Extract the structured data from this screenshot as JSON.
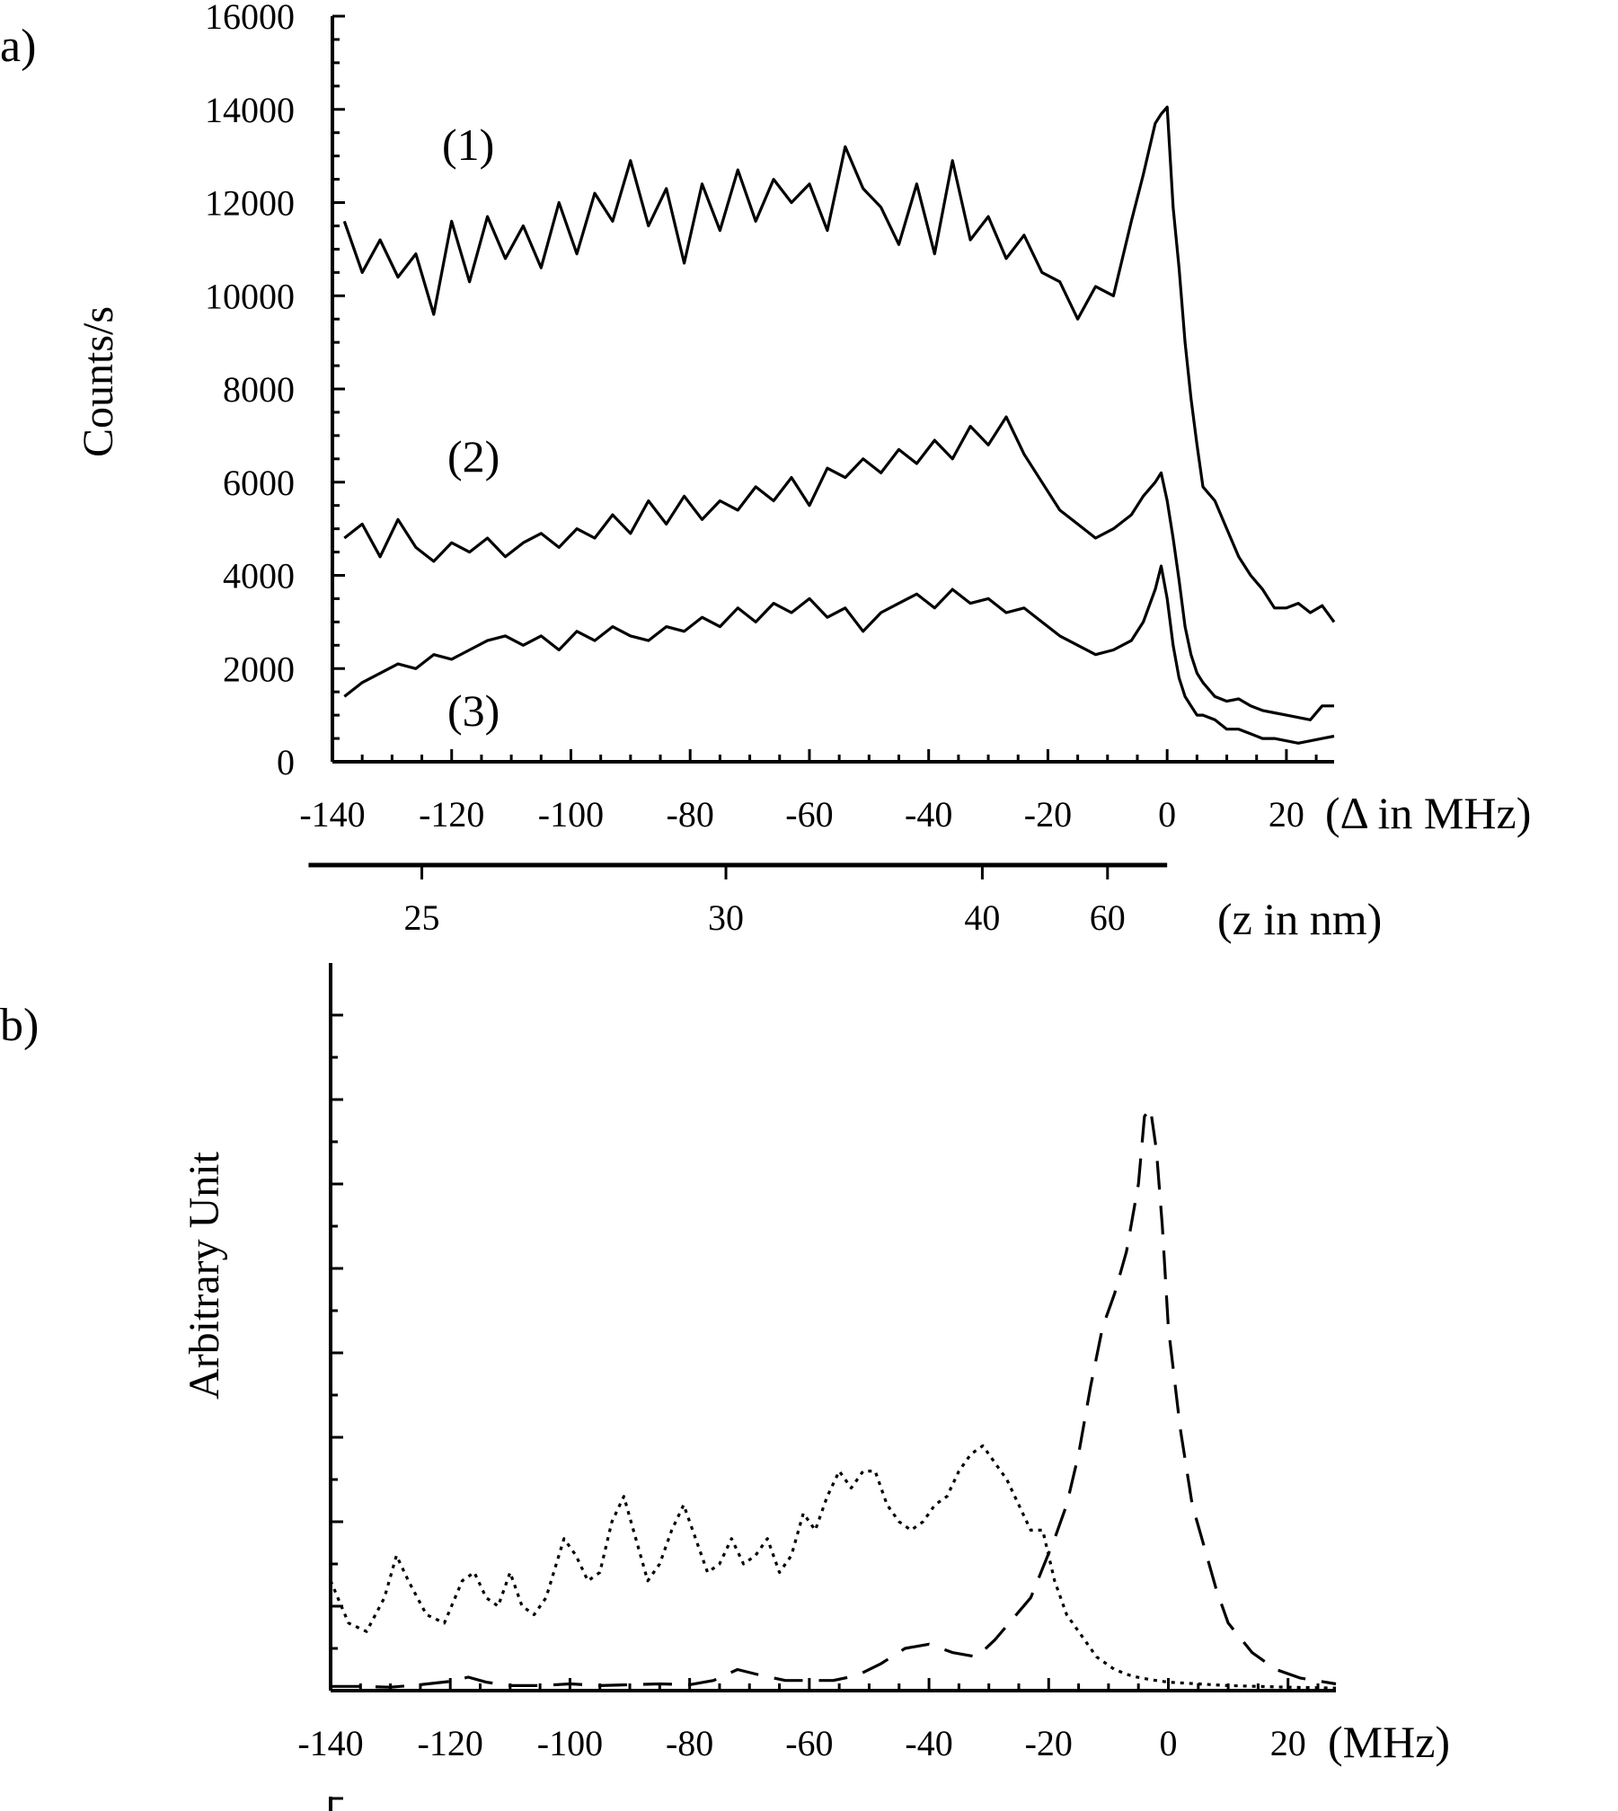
{
  "chart_data": [
    {
      "panel": "a)",
      "type": "line",
      "ylabel": "Counts/s",
      "xunit": "(Δ in MHz)",
      "xlim": [
        -140,
        28
      ],
      "ylim": [
        0,
        16000
      ],
      "xticks": [
        "-140",
        "-120",
        "-100",
        "-80",
        "-60",
        "-40",
        "-20",
        "0",
        "20"
      ],
      "yticks": [
        "0",
        "2000",
        "4000",
        "6000",
        "8000",
        "10000",
        "12000",
        "14000",
        "16000"
      ],
      "secondary_axis": {
        "unit": "(z in nm)",
        "ticks": [
          {
            "label": "25",
            "delta": -125
          },
          {
            "label": "30",
            "delta": -74
          },
          {
            "label": "40",
            "delta": -31
          },
          {
            "label": "60",
            "delta": -10
          }
        ],
        "range_delta": [
          -144,
          0
        ]
      },
      "grid": false,
      "legend": "none",
      "series": [
        {
          "name": "(1)",
          "x": [
            -138,
            -135,
            -132,
            -129,
            -126,
            -123,
            -120,
            -117,
            -114,
            -111,
            -108,
            -105,
            -102,
            -99,
            -96,
            -93,
            -90,
            -87,
            -84,
            -81,
            -78,
            -75,
            -72,
            -69,
            -66,
            -63,
            -60,
            -57,
            -54,
            -51,
            -48,
            -45,
            -42,
            -39,
            -36,
            -33,
            -30,
            -27,
            -24,
            -21,
            -18,
            -15,
            -12,
            -9,
            -6,
            -4,
            -2,
            -1,
            0,
            1,
            2,
            3,
            4,
            5,
            6,
            8,
            10,
            12,
            14,
            16,
            18,
            20,
            22,
            24,
            26,
            28
          ],
          "y": [
            11600,
            10500,
            11200,
            10400,
            10900,
            9600,
            11600,
            10300,
            11700,
            10800,
            11500,
            10600,
            12000,
            10900,
            12200,
            11600,
            12900,
            11500,
            12300,
            10700,
            12400,
            11400,
            12700,
            11600,
            12500,
            12000,
            12400,
            11400,
            13200,
            12300,
            11900,
            11100,
            12400,
            10900,
            12900,
            11200,
            11700,
            10800,
            11300,
            10500,
            10300,
            9500,
            10200,
            10000,
            11600,
            12600,
            13700,
            13900,
            14050,
            11900,
            10600,
            9000,
            7800,
            6800,
            5900,
            5600,
            5000,
            4400,
            4000,
            3700,
            3300,
            3300,
            3400,
            3200,
            3350,
            3000
          ]
        },
        {
          "name": "(2)",
          "x": [
            -138,
            -135,
            -132,
            -129,
            -126,
            -123,
            -120,
            -117,
            -114,
            -111,
            -108,
            -105,
            -102,
            -99,
            -96,
            -93,
            -90,
            -87,
            -84,
            -81,
            -78,
            -75,
            -72,
            -69,
            -66,
            -63,
            -60,
            -57,
            -54,
            -51,
            -48,
            -45,
            -42,
            -39,
            -36,
            -33,
            -30,
            -27,
            -24,
            -21,
            -18,
            -15,
            -12,
            -9,
            -6,
            -4,
            -2,
            -1,
            0,
            1,
            2,
            3,
            4,
            5,
            6,
            8,
            10,
            12,
            14,
            16,
            18,
            20,
            22,
            24,
            26,
            28
          ],
          "y": [
            4800,
            5100,
            4400,
            5200,
            4600,
            4300,
            4700,
            4500,
            4800,
            4400,
            4700,
            4900,
            4600,
            5000,
            4800,
            5300,
            4900,
            5600,
            5100,
            5700,
            5200,
            5600,
            5400,
            5900,
            5600,
            6100,
            5500,
            6300,
            6100,
            6500,
            6200,
            6700,
            6400,
            6900,
            6500,
            7200,
            6800,
            7400,
            6600,
            6000,
            5400,
            5100,
            4800,
            5000,
            5300,
            5700,
            6000,
            6200,
            5600,
            4800,
            3900,
            2900,
            2300,
            1900,
            1700,
            1400,
            1300,
            1350,
            1200,
            1100,
            1050,
            1000,
            950,
            900,
            1200,
            1200
          ]
        },
        {
          "name": "(3)",
          "x": [
            -138,
            -135,
            -132,
            -129,
            -126,
            -123,
            -120,
            -117,
            -114,
            -111,
            -108,
            -105,
            -102,
            -99,
            -96,
            -93,
            -90,
            -87,
            -84,
            -81,
            -78,
            -75,
            -72,
            -69,
            -66,
            -63,
            -60,
            -57,
            -54,
            -51,
            -48,
            -45,
            -42,
            -39,
            -36,
            -33,
            -30,
            -27,
            -24,
            -21,
            -18,
            -15,
            -12,
            -9,
            -6,
            -4,
            -2,
            -1,
            0,
            1,
            2,
            3,
            4,
            5,
            6,
            8,
            10,
            12,
            14,
            16,
            18,
            20,
            22,
            24,
            26,
            28
          ],
          "y": [
            1400,
            1700,
            1900,
            2100,
            2000,
            2300,
            2200,
            2400,
            2600,
            2700,
            2500,
            2700,
            2400,
            2800,
            2600,
            2900,
            2700,
            2600,
            2900,
            2800,
            3100,
            2900,
            3300,
            3000,
            3400,
            3200,
            3500,
            3100,
            3300,
            2800,
            3200,
            3400,
            3600,
            3300,
            3700,
            3400,
            3500,
            3200,
            3300,
            3000,
            2700,
            2500,
            2300,
            2400,
            2600,
            3000,
            3700,
            4200,
            3500,
            2500,
            1800,
            1400,
            1200,
            1000,
            1000,
            900,
            700,
            700,
            600,
            500,
            500,
            450,
            400,
            450,
            500,
            550
          ]
        }
      ]
    },
    {
      "panel": "b)",
      "type": "line",
      "ylabel": "Arbitrary Unit",
      "xunit": "(MHz)",
      "xlim": [
        -140,
        28
      ],
      "ylim": [
        0,
        8
      ],
      "xticks": [
        "-140",
        "-120",
        "-100",
        "-80",
        "-60",
        "-40",
        "-20",
        "0",
        "20"
      ],
      "yticks_labeled": false,
      "grid": false,
      "legend": "none",
      "series": [
        {
          "style": "dotted",
          "x": [
            -140,
            -137,
            -134,
            -131,
            -129,
            -127,
            -124,
            -121,
            -118,
            -116,
            -114,
            -112,
            -110,
            -108,
            -106,
            -104,
            -101,
            -99,
            -97,
            -95,
            -93,
            -91,
            -89,
            -87,
            -85,
            -83,
            -81,
            -79,
            -77,
            -75,
            -73,
            -71,
            -69,
            -67,
            -65,
            -63,
            -61,
            -59,
            -57,
            -55,
            -53,
            -51,
            -49,
            -47,
            -45,
            -43,
            -41,
            -39,
            -37,
            -35,
            -33,
            -31,
            -29,
            -27,
            -25,
            -23,
            -21,
            -19,
            -17,
            -15,
            -12,
            -9,
            -6,
            -3,
            0,
            5,
            10,
            15,
            20,
            28
          ],
          "y": [
            1.3,
            0.8,
            0.7,
            1.1,
            1.6,
            1.3,
            0.9,
            0.8,
            1.3,
            1.4,
            1.1,
            1.0,
            1.4,
            1.0,
            0.9,
            1.1,
            1.8,
            1.6,
            1.3,
            1.4,
            2.0,
            2.3,
            1.8,
            1.3,
            1.5,
            1.9,
            2.2,
            1.8,
            1.4,
            1.5,
            1.8,
            1.5,
            1.6,
            1.8,
            1.4,
            1.6,
            2.1,
            1.9,
            2.3,
            2.6,
            2.4,
            2.6,
            2.6,
            2.2,
            2.0,
            1.9,
            2.0,
            2.2,
            2.3,
            2.6,
            2.8,
            2.9,
            2.7,
            2.5,
            2.2,
            1.9,
            1.9,
            1.3,
            0.9,
            0.7,
            0.4,
            0.25,
            0.17,
            0.13,
            0.1,
            0.08,
            0.06,
            0.05,
            0.04,
            0.03
          ]
        },
        {
          "style": "dashed",
          "x": [
            -140,
            -135,
            -130,
            -125,
            -120,
            -117,
            -114,
            -110,
            -105,
            -100,
            -95,
            -90,
            -85,
            -80,
            -76,
            -72,
            -68,
            -64,
            -60,
            -56,
            -52,
            -48,
            -44,
            -40,
            -36,
            -32,
            -29,
            -26,
            -23,
            -21,
            -19,
            -17,
            -15,
            -13,
            -11,
            -9,
            -7,
            -5,
            -4,
            -3,
            -2,
            -1,
            0,
            2,
            4,
            6,
            8,
            10,
            14,
            18,
            22,
            28
          ],
          "y": [
            0.05,
            0.05,
            0.04,
            0.07,
            0.11,
            0.16,
            0.1,
            0.06,
            0.06,
            0.08,
            0.06,
            0.07,
            0.08,
            0.07,
            0.12,
            0.25,
            0.18,
            0.12,
            0.12,
            0.12,
            0.18,
            0.32,
            0.5,
            0.55,
            0.45,
            0.4,
            0.6,
            0.85,
            1.1,
            1.45,
            1.8,
            2.2,
            2.8,
            3.6,
            4.3,
            4.7,
            5.2,
            6.0,
            6.8,
            6.9,
            6.4,
            5.5,
            4.3,
            3.1,
            2.2,
            1.7,
            1.2,
            0.8,
            0.45,
            0.25,
            0.15,
            0.08
          ]
        }
      ]
    }
  ]
}
